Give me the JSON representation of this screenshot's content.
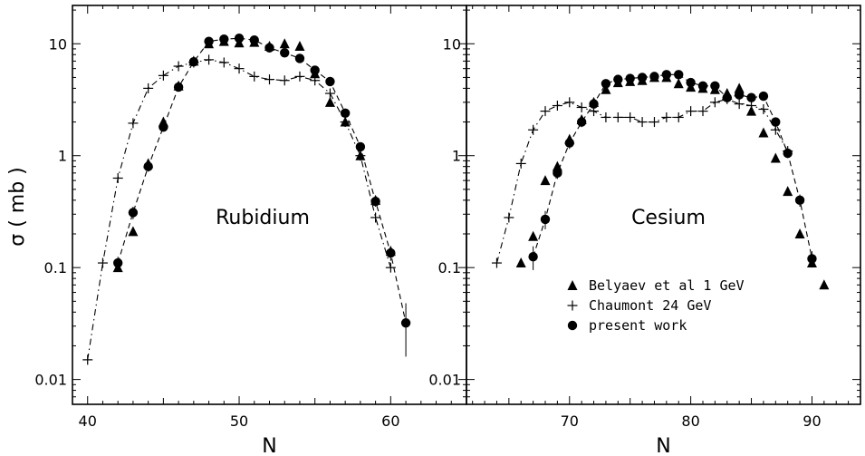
{
  "chart_data": {
    "type": "scatter",
    "ylabel": "σ ( mb )",
    "yscale": "log",
    "ylim": [
      0.006,
      22
    ],
    "yticks": [
      {
        "value": 10,
        "label": "10"
      },
      {
        "value": 1,
        "label": "1"
      },
      {
        "value": 0.1,
        "label": "0.1"
      },
      {
        "value": 0.01,
        "label": "0.01"
      }
    ],
    "legend": {
      "placement": "bottom-right of right panel",
      "entries": [
        {
          "series": "belyaev",
          "label": "Belyaev et al 1 GeV",
          "marker": "triangle"
        },
        {
          "series": "chaumont",
          "label": "Chaumont 24 GeV",
          "marker": "plus"
        },
        {
          "series": "present",
          "label": "present work",
          "marker": "circle"
        }
      ]
    },
    "panels": [
      {
        "label": "Rubidium",
        "xlabel": "N",
        "xlim": [
          39,
          65
        ],
        "xticks": [
          {
            "value": 40,
            "label": "40"
          },
          {
            "value": 50,
            "label": "50"
          },
          {
            "value": 60,
            "label": "60"
          }
        ],
        "series": [
          {
            "name": "Belyaev et al 1 GeV",
            "key": "belyaev",
            "marker": "triangle",
            "x": [
              42,
              43,
              44,
              45,
              46,
              47,
              48,
              49,
              50,
              51,
              52,
              53,
              54,
              55,
              56,
              57,
              58,
              59,
              60
            ],
            "y": [
              0.1,
              0.21,
              0.85,
              2.0,
              4.2,
              7.0,
              10.0,
              10.5,
              10.2,
              10.3,
              9.5,
              10.0,
              9.5,
              5.4,
              3.0,
              2.0,
              1.0,
              0.4,
              0.14
            ]
          },
          {
            "name": "Chaumont 24 GeV",
            "key": "chaumont",
            "marker": "plus",
            "line": "dashdot",
            "x": [
              40,
              41,
              42,
              43,
              44,
              45,
              46,
              47,
              48,
              49,
              50,
              51,
              52,
              53,
              54,
              55,
              56,
              57,
              58,
              59,
              60
            ],
            "y": [
              0.015,
              0.11,
              0.63,
              1.95,
              4.0,
              5.2,
              6.3,
              6.8,
              7.2,
              6.8,
              6.0,
              5.1,
              4.8,
              4.7,
              5.1,
              4.7,
              3.6,
              2.0,
              1.0,
              0.28,
              0.1
            ]
          },
          {
            "name": "present work",
            "key": "present",
            "marker": "circle",
            "line": "dashed",
            "x": [
              42,
              43,
              44,
              45,
              46,
              47,
              48,
              49,
              50,
              51,
              52,
              53,
              54,
              55,
              56,
              57,
              58,
              59,
              60,
              61
            ],
            "y": [
              0.11,
              0.31,
              0.8,
              1.8,
              4.1,
              6.9,
              10.5,
              11.0,
              11.2,
              10.8,
              9.2,
              8.3,
              7.4,
              5.8,
              4.6,
              2.4,
              1.2,
              0.39,
              0.135,
              0.032
            ],
            "yerr": [
              0.015,
              0.04,
              0.08,
              0.15,
              0.3,
              0.5,
              0.7,
              0.7,
              0.7,
              0.7,
              0.6,
              0.6,
              0.5,
              0.4,
              0.3,
              0.2,
              0.1,
              0.04,
              0.02,
              0.016
            ]
          }
        ]
      },
      {
        "label": "Cesium",
        "xlabel": "N",
        "xlim": [
          61.5,
          94
        ],
        "xticks": [
          {
            "value": 70,
            "label": "70"
          },
          {
            "value": 80,
            "label": "80"
          },
          {
            "value": 90,
            "label": "90"
          }
        ],
        "series": [
          {
            "name": "Belyaev et al 1 GeV",
            "key": "belyaev",
            "marker": "triangle",
            "x": [
              66,
              67,
              68,
              69,
              70,
              71,
              72,
              73,
              74,
              75,
              76,
              77,
              78,
              79,
              80,
              81,
              82,
              83,
              84,
              85,
              86,
              87,
              88,
              89,
              90,
              91
            ],
            "y": [
              0.11,
              0.19,
              0.6,
              0.8,
              1.4,
              2.1,
              3.0,
              3.9,
              4.5,
              4.6,
              4.7,
              5.0,
              5.0,
              4.4,
              4.1,
              4.0,
              3.9,
              3.6,
              4.0,
              2.5,
              1.6,
              0.95,
              0.48,
              0.2,
              0.11,
              0.07
            ]
          },
          {
            "name": "Chaumont 24 GeV",
            "key": "chaumont",
            "marker": "plus",
            "line": "dashdot",
            "x": [
              64,
              65,
              66,
              67,
              68,
              69,
              70,
              71,
              72,
              73,
              74,
              75,
              76,
              77,
              78,
              79,
              80,
              81,
              82,
              83,
              84,
              85,
              86,
              87,
              88
            ],
            "y": [
              0.11,
              0.28,
              0.85,
              1.7,
              2.5,
              2.8,
              3.0,
              2.7,
              2.5,
              2.2,
              2.2,
              2.2,
              2.0,
              2.0,
              2.2,
              2.2,
              2.5,
              2.5,
              3.0,
              3.2,
              2.9,
              2.8,
              2.6,
              1.7,
              1.1
            ]
          },
          {
            "name": "present work",
            "key": "present",
            "marker": "circle",
            "line": "dashed",
            "x": [
              67,
              68,
              69,
              70,
              71,
              72,
              73,
              74,
              75,
              76,
              77,
              78,
              79,
              80,
              81,
              82,
              83,
              84,
              85,
              86,
              87,
              88,
              89,
              90
            ],
            "y": [
              0.125,
              0.27,
              0.7,
              1.3,
              2.0,
              2.9,
              4.4,
              4.8,
              4.9,
              5.0,
              5.1,
              5.3,
              5.3,
              4.5,
              4.2,
              4.2,
              3.3,
              3.5,
              3.3,
              3.4,
              2.0,
              1.05,
              0.4,
              0.12
            ],
            "yerr": [
              0.03,
              0.05,
              0.08,
              0.15,
              0.2,
              0.25,
              0.35,
              0.35,
              0.35,
              0.35,
              0.35,
              0.35,
              0.35,
              0.35,
              0.3,
              0.3,
              0.3,
              0.3,
              0.3,
              0.3,
              0.2,
              0.1,
              0.05,
              0.02
            ]
          }
        ]
      }
    ]
  }
}
